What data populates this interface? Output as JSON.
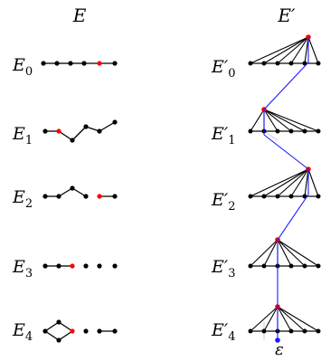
{
  "headers": {
    "left": "E",
    "right": "E′"
  },
  "rows": [
    {
      "left_label": {
        "base": "E",
        "sub": "0"
      },
      "right_label": {
        "base": "E′",
        "sub": "0"
      }
    },
    {
      "left_label": {
        "base": "E",
        "sub": "1"
      },
      "right_label": {
        "base": "E′",
        "sub": "1"
      }
    },
    {
      "left_label": {
        "base": "E",
        "sub": "2"
      },
      "right_label": {
        "base": "E′",
        "sub": "2"
      }
    },
    {
      "left_label": {
        "base": "E",
        "sub": "3"
      },
      "right_label": {
        "base": "E′",
        "sub": "3"
      }
    },
    {
      "left_label": {
        "base": "E",
        "sub": "4"
      },
      "right_label": {
        "base": "E′",
        "sub": "4"
      }
    }
  ],
  "annotation": "ε",
  "colors": {
    "vertex": "#000000",
    "edge": "#000000",
    "highlight": "#ff0000",
    "path": "#1a1aff",
    "epsilon_vertex": "#1a1aff",
    "faint_edge": "#cccccc"
  }
}
